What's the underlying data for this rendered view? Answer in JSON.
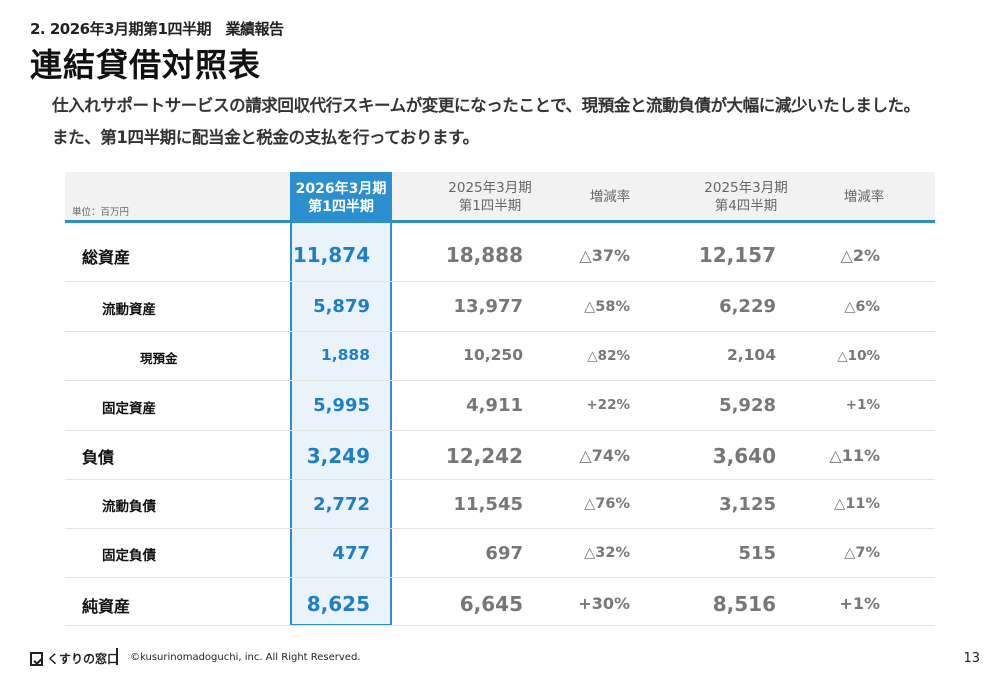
{
  "section_label": "2. 2026年3月期第1四半期　業績報告",
  "title": "連結貸借対照表",
  "lead": [
    "仕入れサポートサービスの請求回収代行スキームが変更になったことで、現預金と流動負債が大幅に減少いたしました。",
    "また、第1四半期に配当金と税金の支払を行っております。"
  ],
  "table": {
    "unit": "単位：百万円",
    "headers": {
      "current": [
        "2026年3月期",
        "第1四半期"
      ],
      "prev_q1": [
        "2025年3月期",
        "第1四半期"
      ],
      "change1": "増減率",
      "prev_q4": [
        "2025年3月期",
        "第4四半期"
      ],
      "change2": "増減率"
    },
    "rows": [
      {
        "label": "総資産",
        "level": 0,
        "values": [
          "11,874",
          "18,888",
          "△37%",
          "12,157",
          "△2%"
        ]
      },
      {
        "label": "流動資産",
        "level": 1,
        "values": [
          "5,879",
          "13,977",
          "△58%",
          "6,229",
          "△6%"
        ]
      },
      {
        "label": "現預金",
        "level": 2,
        "values": [
          "1,888",
          "10,250",
          "△82%",
          "2,104",
          "△10%"
        ]
      },
      {
        "label": "固定資産",
        "level": 1,
        "values": [
          "5,995",
          "4,911",
          "+22%",
          "5,928",
          "+1%"
        ]
      },
      {
        "label": "負債",
        "level": 0,
        "values": [
          "3,249",
          "12,242",
          "△74%",
          "3,640",
          "△11%"
        ]
      },
      {
        "label": "流動負債",
        "level": 1,
        "values": [
          "2,772",
          "11,545",
          "△76%",
          "3,125",
          "△11%"
        ]
      },
      {
        "label": "固定負債",
        "level": 1,
        "values": [
          "477",
          "697",
          "△32%",
          "515",
          "△7%"
        ]
      },
      {
        "label": "純資産",
        "level": 0,
        "values": [
          "8,625",
          "6,645",
          "+30%",
          "8,516",
          "+1%"
        ]
      }
    ]
  },
  "footer": {
    "logo": "くすりの窓口",
    "copyright": "©kusurinomadoguchi, inc. All Right Reserved.",
    "page": "13"
  },
  "colors": {
    "accent": "#2a8ecf",
    "highlight_bg": "#eaf3fb"
  }
}
